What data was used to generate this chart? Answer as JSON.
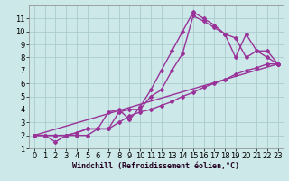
{
  "xlabel": "Windchill (Refroidissement éolien,°C)",
  "background_color": "#cce8e8",
  "grid_color": "#aacccc",
  "line_color": "#993399",
  "xlim": [
    -0.5,
    23.5
  ],
  "ylim": [
    1,
    12
  ],
  "yticks": [
    1,
    2,
    3,
    4,
    5,
    6,
    7,
    8,
    9,
    10,
    11
  ],
  "xticks": [
    0,
    1,
    2,
    3,
    4,
    5,
    6,
    7,
    8,
    9,
    10,
    11,
    12,
    13,
    14,
    15,
    16,
    17,
    18,
    19,
    20,
    21,
    22,
    23
  ],
  "line1_x": [
    0,
    1,
    2,
    3,
    4,
    5,
    6,
    7,
    8,
    9,
    10,
    11,
    12,
    13,
    14,
    15,
    16,
    17,
    18,
    19,
    20,
    21,
    22,
    23
  ],
  "line1_y": [
    2,
    2,
    2,
    2,
    2,
    2,
    2.5,
    3.8,
    4.0,
    3.2,
    4.2,
    5.5,
    7.0,
    8.5,
    10.0,
    11.5,
    11.0,
    10.5,
    9.8,
    9.5,
    8.0,
    8.5,
    8.0,
    7.5
  ],
  "line2_x": [
    0,
    1,
    2,
    3,
    4,
    5,
    6,
    7,
    8,
    9,
    10,
    11,
    12,
    13,
    14,
    15,
    16,
    17,
    18,
    19,
    20,
    21,
    22,
    23
  ],
  "line2_y": [
    2,
    2,
    1.5,
    2,
    2.2,
    2.5,
    2.5,
    2.5,
    3.8,
    4.0,
    4.0,
    5.0,
    5.5,
    7.0,
    8.3,
    11.2,
    10.8,
    10.3,
    9.8,
    8.0,
    9.8,
    8.5,
    8.5,
    7.5
  ],
  "line3_x": [
    0,
    1,
    2,
    3,
    4,
    5,
    6,
    7,
    8,
    9,
    10,
    11,
    12,
    13,
    14,
    15,
    16,
    17,
    18,
    19,
    20,
    21,
    22,
    23
  ],
  "line3_y": [
    2,
    2,
    2,
    2,
    2.2,
    2.5,
    2.5,
    2.5,
    3.0,
    3.5,
    3.8,
    4.0,
    4.3,
    4.6,
    5.0,
    5.3,
    5.7,
    6.0,
    6.3,
    6.7,
    7.0,
    7.2,
    7.5,
    7.5
  ],
  "line4_x": [
    0,
    23
  ],
  "line4_y": [
    2,
    7.5
  ],
  "marker": "D",
  "markersize": 2,
  "linewidth": 1.0,
  "xlabel_fontsize": 6,
  "tick_fontsize": 6
}
